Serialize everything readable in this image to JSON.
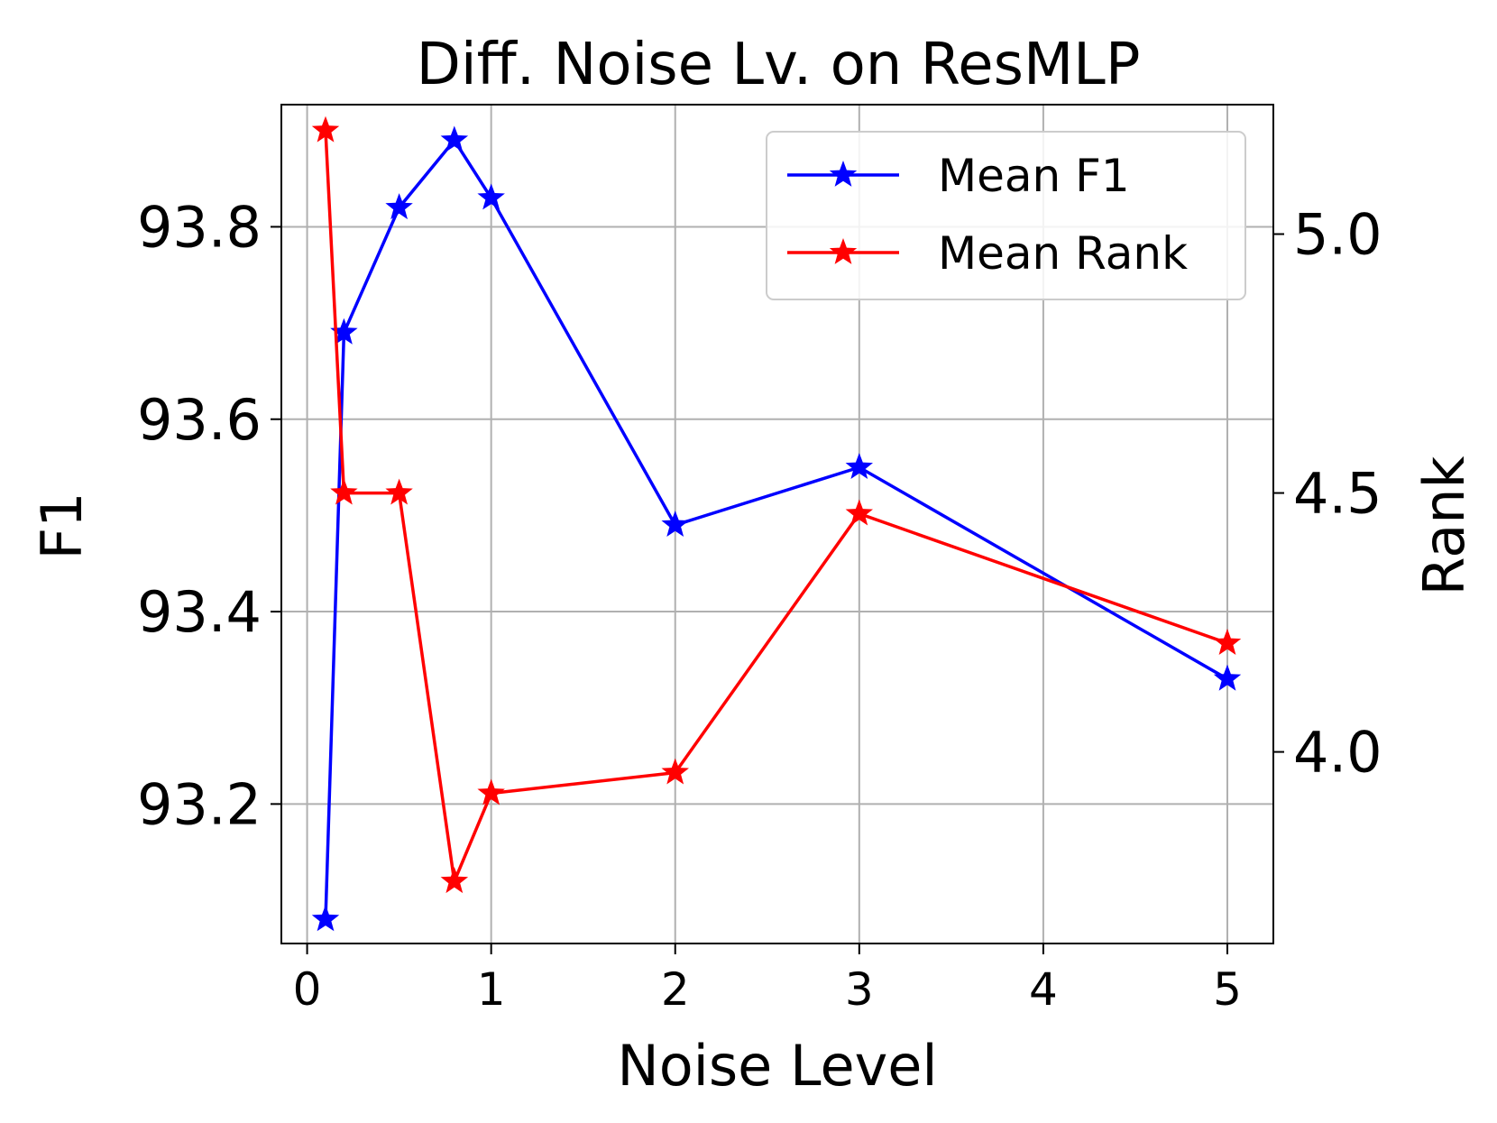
{
  "chart_data": {
    "type": "line",
    "title": "Diff. Noise Lv. on ResMLP",
    "xlabel": "Noise Level",
    "ylabel": "F1",
    "y2label": "Rank",
    "xlim": [
      -0.14,
      5.25
    ],
    "ylim": [
      93.055,
      93.927
    ],
    "y2lim": [
      3.63,
      5.25
    ],
    "xticks": [
      0,
      1,
      2,
      3,
      4,
      5
    ],
    "yticks": [
      93.2,
      93.4,
      93.6,
      93.8
    ],
    "ytick_labels": [
      "93.2",
      "93.4",
      "93.6",
      "93.8"
    ],
    "y2ticks": [
      4.0,
      4.5,
      5.0
    ],
    "y2tick_labels": [
      "4.0",
      "4.5",
      "5.0"
    ],
    "grid": true,
    "legend_position": "top-right",
    "series": [
      {
        "name": "Mean F1",
        "axis": "left",
        "color": "#0000ff",
        "marker": "star",
        "x": [
          0.1,
          0.2,
          0.5,
          0.8,
          1,
          2,
          3,
          5
        ],
        "values": [
          93.08,
          93.69,
          93.82,
          93.89,
          93.83,
          93.49,
          93.55,
          93.33
        ]
      },
      {
        "name": "Mean Rank",
        "axis": "right",
        "color": "#ff0000",
        "marker": "star",
        "x": [
          0.1,
          0.2,
          0.5,
          0.8,
          1,
          2,
          3,
          5
        ],
        "values": [
          5.2,
          4.5,
          4.5,
          3.75,
          3.92,
          3.96,
          4.46,
          4.21
        ]
      }
    ]
  }
}
